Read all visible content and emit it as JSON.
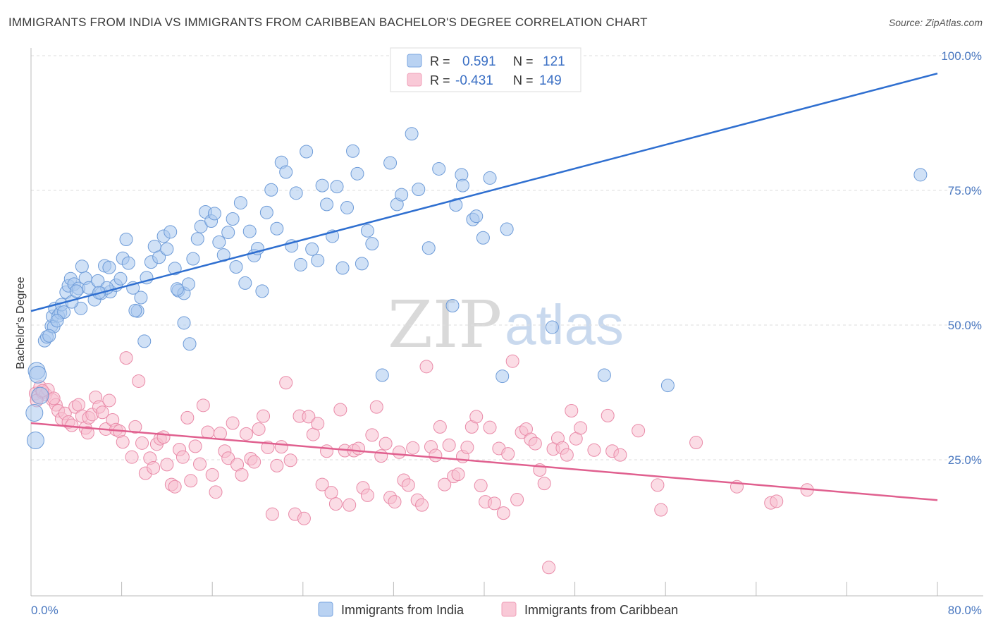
{
  "header": {
    "title": "IMMIGRANTS FROM INDIA VS IMMIGRANTS FROM CARIBBEAN BACHELOR'S DEGREE CORRELATION CHART",
    "source": "Source: ZipAtlas.com"
  },
  "watermark": {
    "zip": "ZIP",
    "atlas": "atlas"
  },
  "legend": {
    "rows": [
      {
        "r_label": "R =",
        "r_value": "0.591",
        "n_label": "N =",
        "n_value": "121",
        "color": "#7aa6e0"
      },
      {
        "r_label": "R =",
        "r_value": "-0.431",
        "n_label": "N =",
        "n_value": "149",
        "color": "#f0a0b8"
      }
    ]
  },
  "bottom_legend": {
    "india": "Immigrants from India",
    "caribbean": "Immigrants from Caribbean"
  },
  "chart_data": {
    "type": "scatter",
    "title": "IMMIGRANTS FROM INDIA VS IMMIGRANTS FROM CARIBBEAN BACHELOR'S DEGREE CORRELATION CHART",
    "xlabel": "",
    "ylabel": "Bachelor's Degree",
    "xlim": [
      0,
      80
    ],
    "ylim": [
      0,
      100
    ],
    "x_tick_labels": [
      "0.0%",
      "80.0%"
    ],
    "y_tick_labels": [
      "25.0%",
      "50.0%",
      "75.0%",
      "100.0%"
    ],
    "y_ticks": [
      25,
      50,
      75,
      100
    ],
    "grid": true,
    "colors": {
      "india_fill": "#a9c8ef",
      "india_stroke": "#6d9bd8",
      "india_line": "#2f6fd0",
      "caribbean_fill": "#f7bfd0",
      "caribbean_stroke": "#e98aa8",
      "caribbean_line": "#e0608f"
    },
    "series": [
      {
        "name": "Immigrants from India",
        "trend": {
          "x": [
            0,
            80
          ],
          "y": [
            52.6,
            96.7
          ]
        },
        "points": [
          [
            0.3,
            33.7
          ],
          [
            0.4,
            28.6
          ],
          [
            0.5,
            41.5
          ],
          [
            0.6,
            40.8
          ],
          [
            0.8,
            36.9
          ],
          [
            1.2,
            47.1
          ],
          [
            1.4,
            47.8
          ],
          [
            1.8,
            49.8
          ],
          [
            1.9,
            51.6
          ],
          [
            2.0,
            49.7
          ],
          [
            2.1,
            53.1
          ],
          [
            2.4,
            51.7
          ],
          [
            2.6,
            52.3
          ],
          [
            2.7,
            53.8
          ],
          [
            3.1,
            56.1
          ],
          [
            3.3,
            57.3
          ],
          [
            3.5,
            58.6
          ],
          [
            3.8,
            57.6
          ],
          [
            4.2,
            56.8
          ],
          [
            4.4,
            53.1
          ],
          [
            4.5,
            60.9
          ],
          [
            4.8,
            58.7
          ],
          [
            5.1,
            56.9
          ],
          [
            5.6,
            54.7
          ],
          [
            5.9,
            58.2
          ],
          [
            6.2,
            55.9
          ],
          [
            6.5,
            61.0
          ],
          [
            6.9,
            60.7
          ],
          [
            7.0,
            56.2
          ],
          [
            7.5,
            57.4
          ],
          [
            7.9,
            58.6
          ],
          [
            8.1,
            62.4
          ],
          [
            8.4,
            65.9
          ],
          [
            8.6,
            61.5
          ],
          [
            9.0,
            56.9
          ],
          [
            9.4,
            52.6
          ],
          [
            9.7,
            55.1
          ],
          [
            10.2,
            58.8
          ],
          [
            10.6,
            61.7
          ],
          [
            10.9,
            64.6
          ],
          [
            11.3,
            62.6
          ],
          [
            11.7,
            66.5
          ],
          [
            12.0,
            64.1
          ],
          [
            12.3,
            67.3
          ],
          [
            12.7,
            60.5
          ],
          [
            13.0,
            56.4
          ],
          [
            13.5,
            55.9
          ],
          [
            13.9,
            57.6
          ],
          [
            14.3,
            62.3
          ],
          [
            14.7,
            66.0
          ],
          [
            15.0,
            68.3
          ],
          [
            15.4,
            71.0
          ],
          [
            15.9,
            69.3
          ],
          [
            16.2,
            70.7
          ],
          [
            16.6,
            65.4
          ],
          [
            17.0,
            63.0
          ],
          [
            17.4,
            67.2
          ],
          [
            17.8,
            69.7
          ],
          [
            18.1,
            60.8
          ],
          [
            18.5,
            72.7
          ],
          [
            18.9,
            57.8
          ],
          [
            19.3,
            67.4
          ],
          [
            19.7,
            62.9
          ],
          [
            20.0,
            64.2
          ],
          [
            20.4,
            56.3
          ],
          [
            20.8,
            70.9
          ],
          [
            21.2,
            75.1
          ],
          [
            21.7,
            67.9
          ],
          [
            22.1,
            80.2
          ],
          [
            22.5,
            78.4
          ],
          [
            23.0,
            64.7
          ],
          [
            23.4,
            74.5
          ],
          [
            23.8,
            61.2
          ],
          [
            24.3,
            82.2
          ],
          [
            24.8,
            64.1
          ],
          [
            25.3,
            62.0
          ],
          [
            25.7,
            75.9
          ],
          [
            26.1,
            72.4
          ],
          [
            26.6,
            66.5
          ],
          [
            27.0,
            75.7
          ],
          [
            27.5,
            60.6
          ],
          [
            27.9,
            71.8
          ],
          [
            28.4,
            82.3
          ],
          [
            28.8,
            78.1
          ],
          [
            29.2,
            61.4
          ],
          [
            29.7,
            67.5
          ],
          [
            30.1,
            65.1
          ],
          [
            31.0,
            40.7
          ],
          [
            31.7,
            80.1
          ],
          [
            32.3,
            72.4
          ],
          [
            32.7,
            74.2
          ],
          [
            33.6,
            85.5
          ],
          [
            34.2,
            75.2
          ],
          [
            35.1,
            64.3
          ],
          [
            36.0,
            79.0
          ],
          [
            37.2,
            53.6
          ],
          [
            37.5,
            72.3
          ],
          [
            38.0,
            77.9
          ],
          [
            38.1,
            75.9
          ],
          [
            39.0,
            69.6
          ],
          [
            39.3,
            70.2
          ],
          [
            39.9,
            66.2
          ],
          [
            40.5,
            77.3
          ],
          [
            41.6,
            40.5
          ],
          [
            42.0,
            67.8
          ],
          [
            46.0,
            49.6
          ],
          [
            50.6,
            40.7
          ],
          [
            56.2,
            38.8
          ],
          [
            78.5,
            77.9
          ],
          [
            2.9,
            52.4
          ],
          [
            3.6,
            54.3
          ],
          [
            4.0,
            56.3
          ],
          [
            6.7,
            56.9
          ],
          [
            9.2,
            52.7
          ],
          [
            10.0,
            47.0
          ],
          [
            12.9,
            56.7
          ],
          [
            13.5,
            50.4
          ],
          [
            14.0,
            46.5
          ],
          [
            6.0,
            56.0
          ],
          [
            2.3,
            50.8
          ],
          [
            1.6,
            48.0
          ]
        ]
      },
      {
        "name": "Immigrants from Caribbean",
        "trend": {
          "x": [
            0,
            80
          ],
          "y": [
            31.8,
            17.5
          ]
        },
        "points": [
          [
            0.4,
            37.3
          ],
          [
            0.6,
            36.7
          ],
          [
            0.8,
            38.5
          ],
          [
            1.0,
            37.5
          ],
          [
            1.3,
            37.1
          ],
          [
            1.5,
            38.0
          ],
          [
            1.9,
            36.1
          ],
          [
            2.2,
            35.2
          ],
          [
            2.4,
            34.1
          ],
          [
            2.7,
            32.6
          ],
          [
            3.0,
            33.6
          ],
          [
            3.3,
            32.0
          ],
          [
            3.6,
            31.4
          ],
          [
            3.9,
            34.8
          ],
          [
            4.2,
            35.2
          ],
          [
            4.5,
            33.1
          ],
          [
            4.8,
            30.9
          ],
          [
            5.1,
            32.8
          ],
          [
            5.4,
            33.4
          ],
          [
            5.7,
            36.6
          ],
          [
            6.0,
            34.8
          ],
          [
            6.3,
            33.8
          ],
          [
            6.6,
            30.7
          ],
          [
            6.9,
            36.0
          ],
          [
            7.2,
            32.4
          ],
          [
            7.5,
            30.6
          ],
          [
            7.8,
            30.3
          ],
          [
            8.1,
            28.3
          ],
          [
            8.4,
            43.9
          ],
          [
            8.9,
            25.5
          ],
          [
            9.2,
            31.1
          ],
          [
            9.5,
            39.6
          ],
          [
            9.8,
            28.1
          ],
          [
            10.1,
            22.5
          ],
          [
            10.5,
            25.3
          ],
          [
            10.8,
            23.5
          ],
          [
            11.1,
            27.9
          ],
          [
            11.4,
            28.9
          ],
          [
            11.7,
            29.2
          ],
          [
            12.0,
            24.1
          ],
          [
            12.4,
            20.4
          ],
          [
            12.7,
            20.0
          ],
          [
            13.1,
            26.9
          ],
          [
            13.4,
            25.5
          ],
          [
            13.8,
            32.8
          ],
          [
            14.1,
            21.1
          ],
          [
            14.5,
            27.5
          ],
          [
            14.9,
            24.2
          ],
          [
            15.2,
            35.1
          ],
          [
            15.6,
            30.1
          ],
          [
            16.0,
            22.2
          ],
          [
            16.3,
            19.0
          ],
          [
            16.7,
            29.9
          ],
          [
            17.1,
            26.6
          ],
          [
            17.4,
            25.3
          ],
          [
            17.8,
            31.8
          ],
          [
            18.2,
            24.1
          ],
          [
            18.6,
            22.2
          ],
          [
            19.0,
            29.8
          ],
          [
            19.4,
            25.2
          ],
          [
            19.7,
            24.6
          ],
          [
            20.1,
            30.7
          ],
          [
            20.5,
            33.1
          ],
          [
            20.9,
            27.3
          ],
          [
            21.3,
            14.9
          ],
          [
            21.7,
            23.9
          ],
          [
            22.1,
            27.4
          ],
          [
            22.5,
            39.3
          ],
          [
            22.9,
            24.9
          ],
          [
            23.3,
            14.9
          ],
          [
            23.7,
            33.1
          ],
          [
            24.1,
            14.1
          ],
          [
            24.5,
            33.0
          ],
          [
            24.9,
            29.7
          ],
          [
            25.3,
            31.7
          ],
          [
            25.7,
            20.4
          ],
          [
            26.1,
            26.6
          ],
          [
            26.5,
            18.9
          ],
          [
            26.9,
            16.8
          ],
          [
            27.3,
            34.3
          ],
          [
            27.7,
            26.7
          ],
          [
            28.1,
            16.6
          ],
          [
            28.5,
            26.7
          ],
          [
            28.9,
            27.1
          ],
          [
            29.3,
            19.8
          ],
          [
            29.7,
            18.4
          ],
          [
            30.1,
            29.6
          ],
          [
            30.5,
            34.8
          ],
          [
            30.9,
            25.7
          ],
          [
            31.3,
            28.0
          ],
          [
            31.7,
            18.0
          ],
          [
            32.1,
            17.2
          ],
          [
            32.5,
            26.4
          ],
          [
            32.9,
            21.2
          ],
          [
            33.3,
            20.3
          ],
          [
            33.7,
            27.2
          ],
          [
            34.1,
            17.5
          ],
          [
            34.5,
            16.6
          ],
          [
            34.9,
            42.3
          ],
          [
            35.3,
            27.4
          ],
          [
            35.7,
            25.8
          ],
          [
            36.1,
            31.1
          ],
          [
            36.5,
            20.4
          ],
          [
            36.9,
            27.7
          ],
          [
            37.3,
            21.9
          ],
          [
            37.7,
            22.3
          ],
          [
            38.1,
            25.6
          ],
          [
            38.5,
            27.3
          ],
          [
            38.9,
            31.1
          ],
          [
            39.3,
            33.0
          ],
          [
            39.7,
            20.2
          ],
          [
            40.1,
            17.2
          ],
          [
            40.5,
            31.0
          ],
          [
            40.9,
            16.9
          ],
          [
            41.3,
            27.1
          ],
          [
            41.7,
            15.1
          ],
          [
            42.1,
            26.1
          ],
          [
            42.5,
            43.3
          ],
          [
            42.9,
            17.6
          ],
          [
            43.3,
            30.1
          ],
          [
            43.7,
            30.7
          ],
          [
            44.1,
            28.8
          ],
          [
            44.5,
            28.0
          ],
          [
            44.9,
            23.1
          ],
          [
            45.3,
            20.6
          ],
          [
            45.7,
            5.0
          ],
          [
            46.1,
            27.0
          ],
          [
            46.5,
            29.0
          ],
          [
            46.9,
            27.2
          ],
          [
            47.3,
            25.9
          ],
          [
            47.7,
            34.1
          ],
          [
            48.1,
            28.9
          ],
          [
            48.5,
            30.9
          ],
          [
            49.7,
            26.8
          ],
          [
            50.9,
            33.2
          ],
          [
            51.3,
            26.6
          ],
          [
            52.0,
            25.9
          ],
          [
            53.6,
            30.4
          ],
          [
            55.3,
            20.3
          ],
          [
            55.6,
            15.7
          ],
          [
            58.7,
            28.2
          ],
          [
            62.3,
            20.0
          ],
          [
            65.3,
            17.0
          ],
          [
            65.8,
            17.3
          ],
          [
            68.5,
            19.4
          ],
          [
            0.5,
            36.0
          ],
          [
            1.0,
            37.8
          ],
          [
            2.0,
            36.4
          ],
          [
            5.0,
            30.0
          ]
        ]
      }
    ]
  }
}
